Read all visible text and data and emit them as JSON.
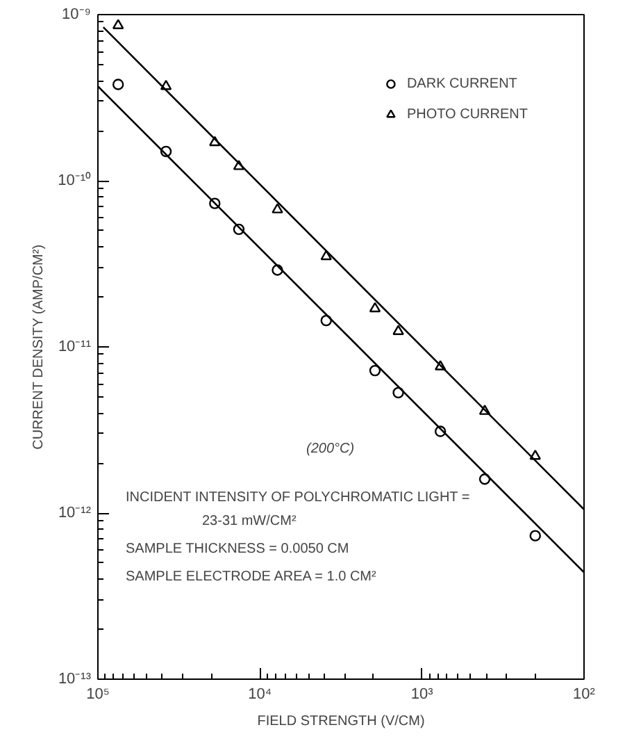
{
  "chart_data": {
    "type": "scatter",
    "xlabel": "FIELD STRENGTH (V/CM)",
    "ylabel": "CURRENT DENSITY (AMP/CM²)",
    "log": "xy",
    "grid": false,
    "legend": "top right",
    "xlim": [
      100000,
      100
    ],
    "ylim": [
      1e-13,
      1e-09
    ],
    "xticks": [
      {
        "value": 100000,
        "label": "10⁵"
      },
      {
        "value": 10000,
        "label": "10⁴"
      },
      {
        "value": 1000,
        "label": "10³"
      },
      {
        "value": 100,
        "label": "10²"
      }
    ],
    "yticks": [
      {
        "value": 1e-13,
        "label": "10⁻¹³"
      },
      {
        "value": 1e-12,
        "label": "10⁻¹²"
      },
      {
        "value": 1e-11,
        "label": "10⁻¹¹"
      },
      {
        "value": 1e-10,
        "label": "10⁻¹⁰"
      },
      {
        "value": 1e-09,
        "label": "10⁻⁹"
      }
    ],
    "annotations": [
      "(200°C)",
      "INCIDENT INTENSITY OF POLYCHROMATIC LIGHT =",
      "23-31 mW/CM²",
      "SAMPLE THICKNESS = 0.0050 CM",
      "SAMPLE ELECTRODE AREA = 1.0 CM²"
    ],
    "series": [
      {
        "name": "DARK CURRENT",
        "marker": "circle",
        "color": "#000000",
        "x": [
          75000,
          38000,
          19000,
          13500,
          7800,
          3900,
          1950,
          1400,
          770,
          410,
          200
        ],
        "values": [
          3.8e-10,
          1.5e-10,
          7.3e-11,
          5.1e-11,
          2.9e-11,
          1.44e-11,
          7.2e-12,
          5.3e-12,
          3.1e-12,
          1.6e-12,
          7.3e-13
        ]
      },
      {
        "name": "PHOTO CURRENT",
        "marker": "triangle",
        "color": "#000000",
        "x": [
          75000,
          38000,
          19000,
          13500,
          7800,
          3900,
          1950,
          1400,
          770,
          410,
          200
        ],
        "values": [
          8.6e-10,
          3.7e-10,
          1.7e-10,
          1.22e-10,
          6.7e-11,
          3.5e-11,
          1.7e-11,
          1.24e-11,
          7.6e-12,
          4.1e-12,
          2.2e-12
        ]
      },
      {
        "type": "line",
        "color": "#000000",
        "x": [
          100000,
          100
        ],
        "values": [
          3.7e-10,
          4.4e-13
        ]
      },
      {
        "type": "line",
        "color": "#000000",
        "x": [
          92600,
          100
        ],
        "values": [
          8.4e-10,
          1.05e-12
        ]
      }
    ]
  }
}
